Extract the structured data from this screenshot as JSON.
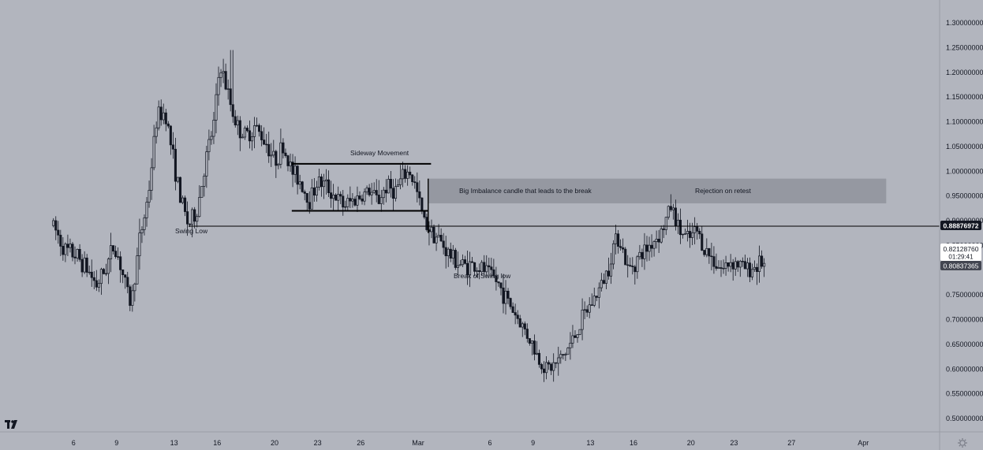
{
  "colors": {
    "background": "#b2b5be",
    "candle": "#131722",
    "line": "#000000",
    "zone": "#9598a1",
    "price_tag_bg": "#131722",
    "price_tag_text": "#ffffff",
    "current_tag_bg": "#ffffff",
    "current_tag_text": "#131722",
    "last_tag_bg": "#434651"
  },
  "logo": {
    "icon": "tradingview-logo-icon",
    "text": "TV"
  },
  "settings_icon": "gear-icon",
  "chart_data": {
    "type": "candlestick",
    "ylim": [
      0.47,
      1.33
    ],
    "y_ticks": [
      "1.30000000",
      "1.25000000",
      "1.20000000",
      "1.15000000",
      "1.10000000",
      "1.05000000",
      "1.00000000",
      "0.95000000",
      "0.90000000",
      "0.85000000",
      "0.75000000",
      "0.70000000",
      "0.65000000",
      "0.60000000",
      "0.55000000",
      "0.50000000"
    ],
    "y_tick_values": [
      1.3,
      1.25,
      1.2,
      1.15,
      1.1,
      1.05,
      1.0,
      0.95,
      0.9,
      0.85,
      0.75,
      0.7,
      0.65,
      0.6,
      0.55,
      0.5
    ],
    "x_ticks": [
      "6",
      "9",
      "13",
      "16",
      "20",
      "23",
      "26",
      "Mar",
      "6",
      "9",
      "13",
      "16",
      "20",
      "23",
      "27",
      "Apr"
    ],
    "x_tick_days": [
      -24,
      -21,
      -17,
      -14,
      -10,
      -7,
      -4,
      0,
      5,
      8,
      12,
      15,
      19,
      22,
      26,
      31
    ],
    "x_range_days": [
      -25.4,
      33.2
    ],
    "price_path": [
      [
        -25.4,
        0.89
      ],
      [
        -24.6,
        0.84
      ],
      [
        -23.8,
        0.83
      ],
      [
        -23.0,
        0.8
      ],
      [
        -22.4,
        0.77
      ],
      [
        -21.8,
        0.8
      ],
      [
        -21.2,
        0.85
      ],
      [
        -20.8,
        0.82
      ],
      [
        -20.4,
        0.77
      ],
      [
        -20.0,
        0.73
      ],
      [
        -19.4,
        0.86
      ],
      [
        -18.8,
        0.95
      ],
      [
        -18.2,
        1.11
      ],
      [
        -17.6,
        1.12
      ],
      [
        -17.2,
        1.05
      ],
      [
        -16.6,
        0.95
      ],
      [
        -16.0,
        0.89
      ],
      [
        -15.4,
        0.92
      ],
      [
        -14.8,
        1.02
      ],
      [
        -14.2,
        1.1
      ],
      [
        -13.8,
        1.22
      ],
      [
        -13.2,
        1.15
      ],
      [
        -12.6,
        1.09
      ],
      [
        -12.0,
        1.07
      ],
      [
        -11.4,
        1.09
      ],
      [
        -10.6,
        1.06
      ],
      [
        -10.0,
        1.02
      ],
      [
        -9.4,
        1.05
      ],
      [
        -8.8,
        1.0
      ],
      [
        -8.2,
        0.98
      ],
      [
        -7.6,
        0.94
      ],
      [
        -7.0,
        0.98
      ],
      [
        -6.4,
        0.97
      ],
      [
        -5.8,
        0.95
      ],
      [
        -5.2,
        0.93
      ],
      [
        -4.6,
        0.94
      ],
      [
        -4.0,
        0.95
      ],
      [
        -3.4,
        0.96
      ],
      [
        -2.8,
        0.94
      ],
      [
        -2.2,
        0.97
      ],
      [
        -1.6,
        0.96
      ],
      [
        -1.0,
        0.99
      ],
      [
        -0.6,
        1.0
      ],
      [
        -0.2,
        0.97
      ],
      [
        0.4,
        0.9
      ],
      [
        0.9,
        0.88
      ],
      [
        1.5,
        0.86
      ],
      [
        2.2,
        0.83
      ],
      [
        3.0,
        0.81
      ],
      [
        3.8,
        0.81
      ],
      [
        4.6,
        0.8
      ],
      [
        5.4,
        0.78
      ],
      [
        6.0,
        0.75
      ],
      [
        6.6,
        0.72
      ],
      [
        7.2,
        0.69
      ],
      [
        7.8,
        0.66
      ],
      [
        8.4,
        0.62
      ],
      [
        9.0,
        0.6
      ],
      [
        9.6,
        0.61
      ],
      [
        10.2,
        0.63
      ],
      [
        10.8,
        0.66
      ],
      [
        11.4,
        0.7
      ],
      [
        12.0,
        0.73
      ],
      [
        12.6,
        0.76
      ],
      [
        13.2,
        0.8
      ],
      [
        13.6,
        0.85
      ],
      [
        14.0,
        0.87
      ],
      [
        14.6,
        0.8
      ],
      [
        15.2,
        0.82
      ],
      [
        15.8,
        0.84
      ],
      [
        16.4,
        0.86
      ],
      [
        17.0,
        0.88
      ],
      [
        17.6,
        0.93
      ],
      [
        18.2,
        0.88
      ],
      [
        18.8,
        0.86
      ],
      [
        19.4,
        0.88
      ],
      [
        20.0,
        0.84
      ],
      [
        20.6,
        0.82
      ],
      [
        21.2,
        0.8
      ],
      [
        21.8,
        0.82
      ],
      [
        22.4,
        0.81
      ],
      [
        23.0,
        0.8
      ],
      [
        23.6,
        0.81
      ],
      [
        24.2,
        0.82
      ]
    ],
    "swing_high": [
      -13.0,
      1.245
    ],
    "drawings": {
      "swing_low_line": {
        "price": 0.88876972,
        "label": "Swing Low"
      },
      "sideway_top": {
        "x": [
          -8.8,
          -0.2
        ],
        "price": 1.015
      },
      "sideway_bottom": {
        "x": [
          -8.8,
          0.7
        ],
        "price": 0.92
      },
      "zone": {
        "x": [
          0.7,
          32.6
        ],
        "price_top": 0.985,
        "price_bottom": 0.935
      },
      "break_marker": {
        "x": 0.7,
        "price": 0.92
      }
    },
    "annotations": {
      "sideway": "Sideway Movement",
      "imbalance": "Big Imbalance candle that leads to the break",
      "rejection": "Rejection on retest",
      "break_swing_low": "Break of Swing low",
      "swing_low": "Swing Low"
    },
    "price_tags": {
      "swing_low": "0.88876972",
      "current_price": "0.82128760",
      "countdown": "01:29:41",
      "last": "0.80837365"
    }
  }
}
